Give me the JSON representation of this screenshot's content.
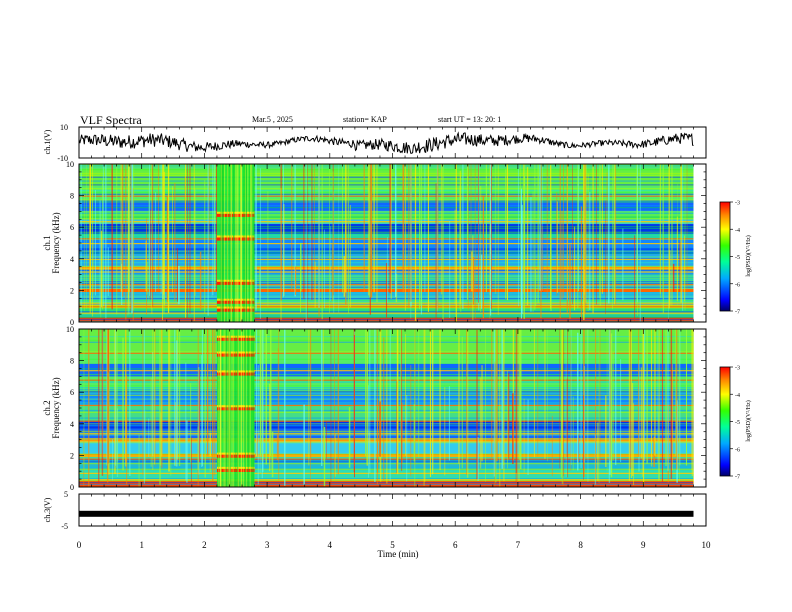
{
  "header": {
    "title": "VLF Spectra",
    "date": "Mar.5 , 2025",
    "station": "station= KAP",
    "start_ut": "start  UT  =  13: 20: 1"
  },
  "chart_data": [
    {
      "type": "line",
      "name": "ch1-waveform",
      "ylabel": "ch.1(V)",
      "ylim": [
        -10,
        10
      ],
      "ticks": [
        "10",
        "-10"
      ],
      "description_values": "fluctuating envelope roughly between -6 and 7 V over 0-9.8 min"
    },
    {
      "type": "heatmap",
      "name": "ch1-spectrogram",
      "ylabel": "ch.1\nFrequency (kHz)",
      "ylabel_line1": "ch.1",
      "ylabel_line2": "Frequency (kHz)",
      "ylim": [
        0,
        10
      ],
      "yticks": [
        "0",
        "2",
        "4",
        "6",
        "8",
        "10"
      ],
      "xlim": [
        0,
        10
      ],
      "data_extent_min": 9.8,
      "burst_interval_min": [
        2.2,
        2.8
      ],
      "colorbar": {
        "label": "log(PSD)(V²/Hz)",
        "range": [
          -7,
          -3
        ],
        "ticks": [
          "-3",
          "-4",
          "-5",
          "-6",
          "-7"
        ]
      }
    },
    {
      "type": "heatmap",
      "name": "ch2-spectrogram",
      "ylabel": "ch.2\nFrequency (kHz)",
      "ylabel_line1": "ch.2",
      "ylabel_line2": "Frequency (kHz)",
      "ylim": [
        0,
        10
      ],
      "yticks": [
        "0",
        "2",
        "4",
        "6",
        "8",
        "10"
      ],
      "xlim": [
        0,
        10
      ],
      "data_extent_min": 9.8,
      "burst_interval_min": [
        2.2,
        2.8
      ],
      "colorbar": {
        "label": "log(PSD)(V²/Hz)",
        "range": [
          -7,
          -3
        ],
        "ticks": [
          "-3",
          "-4",
          "-5",
          "-6",
          "-7"
        ]
      }
    },
    {
      "type": "line",
      "name": "ch3-waveform",
      "ylabel": "ch.3(V)",
      "ylim": [
        -5,
        5
      ],
      "ticks": [
        "5",
        "-5"
      ],
      "level_v": -1.2,
      "xlim": [
        0,
        10
      ],
      "xticks": [
        "0",
        "1",
        "2",
        "3",
        "4",
        "5",
        "6",
        "7",
        "8",
        "9",
        "10"
      ],
      "xlabel": "Time  (min)"
    }
  ]
}
